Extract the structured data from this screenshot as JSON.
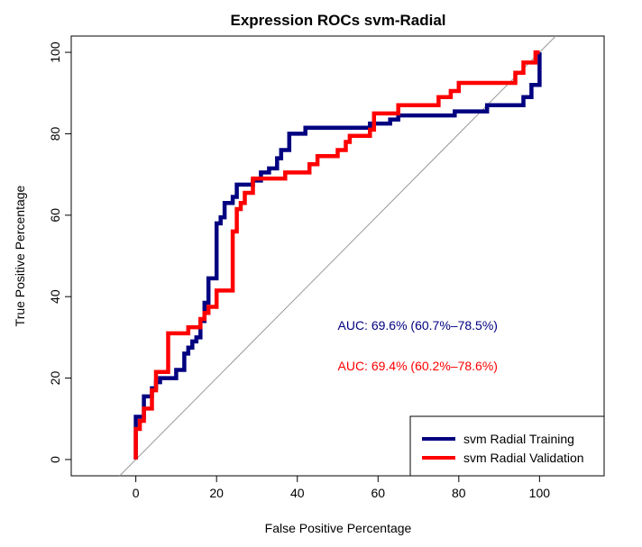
{
  "chart_data": {
    "type": "line",
    "title": "Expression ROCs svm-Radial",
    "xlabel": "False Positive Percentage",
    "ylabel": "True Positive Percentage",
    "xlim": [
      -16,
      116
    ],
    "ylim": [
      -4,
      104
    ],
    "xticks": [
      0,
      20,
      40,
      60,
      80,
      100
    ],
    "yticks": [
      0,
      20,
      40,
      60,
      80,
      100
    ],
    "grid": false,
    "legend_position": "bottom-right",
    "reference_line": {
      "from": [
        -4,
        -4
      ],
      "to": [
        104,
        104
      ],
      "color": "#999999"
    },
    "series": [
      {
        "name": "svm Radial Training",
        "color": "#000080",
        "points": [
          [
            0,
            0
          ],
          [
            0,
            10.5
          ],
          [
            2,
            10.5
          ],
          [
            2,
            15.5
          ],
          [
            4,
            15.5
          ],
          [
            4,
            17.5
          ],
          [
            5,
            17.5
          ],
          [
            5,
            19
          ],
          [
            6,
            19
          ],
          [
            6,
            20
          ],
          [
            10,
            20
          ],
          [
            10,
            22
          ],
          [
            12,
            22
          ],
          [
            12,
            26
          ],
          [
            13,
            26
          ],
          [
            13,
            27.5
          ],
          [
            14,
            27.5
          ],
          [
            14,
            29
          ],
          [
            15,
            29
          ],
          [
            15,
            30
          ],
          [
            16,
            30
          ],
          [
            16,
            34
          ],
          [
            17,
            34
          ],
          [
            17,
            38.5
          ],
          [
            18,
            38.5
          ],
          [
            18,
            44.5
          ],
          [
            20,
            44.5
          ],
          [
            20,
            58
          ],
          [
            21,
            58
          ],
          [
            21,
            59.5
          ],
          [
            22,
            59.5
          ],
          [
            22,
            63
          ],
          [
            24,
            63
          ],
          [
            24,
            64.5
          ],
          [
            25,
            64.5
          ],
          [
            25,
            67.5
          ],
          [
            29,
            67.5
          ],
          [
            29,
            68.5
          ],
          [
            31,
            68.5
          ],
          [
            31,
            70.5
          ],
          [
            33,
            70.5
          ],
          [
            33,
            71.5
          ],
          [
            35,
            71.5
          ],
          [
            35,
            74
          ],
          [
            36,
            74
          ],
          [
            36,
            76
          ],
          [
            38,
            76
          ],
          [
            38,
            80
          ],
          [
            42,
            80
          ],
          [
            42,
            81.5
          ],
          [
            58,
            81.5
          ],
          [
            58,
            82.5
          ],
          [
            63,
            82.5
          ],
          [
            63,
            83.5
          ],
          [
            65,
            83.5
          ],
          [
            65,
            84.5
          ],
          [
            79,
            84.5
          ],
          [
            79,
            85.5
          ],
          [
            87,
            85.5
          ],
          [
            87,
            87
          ],
          [
            96,
            87
          ],
          [
            96,
            89
          ],
          [
            98,
            89
          ],
          [
            98,
            92
          ],
          [
            100,
            92
          ],
          [
            100,
            100
          ]
        ]
      },
      {
        "name": "svm Radial Validation",
        "color": "#ff0000",
        "points": [
          [
            0,
            0
          ],
          [
            0,
            7.5
          ],
          [
            1,
            7.5
          ],
          [
            1,
            9.5
          ],
          [
            2,
            9.5
          ],
          [
            2,
            12.5
          ],
          [
            4,
            12.5
          ],
          [
            4,
            17
          ],
          [
            5,
            17
          ],
          [
            5,
            21.5
          ],
          [
            8,
            21.5
          ],
          [
            8,
            31
          ],
          [
            13,
            31
          ],
          [
            13,
            32.5
          ],
          [
            16,
            32.5
          ],
          [
            16,
            34.5
          ],
          [
            17,
            34.5
          ],
          [
            17,
            36
          ],
          [
            18,
            36
          ],
          [
            18,
            37.5
          ],
          [
            20,
            37.5
          ],
          [
            20,
            41.5
          ],
          [
            24,
            41.5
          ],
          [
            24,
            56
          ],
          [
            25,
            56
          ],
          [
            25,
            61.5
          ],
          [
            26,
            61.5
          ],
          [
            26,
            63
          ],
          [
            27,
            63
          ],
          [
            27,
            65.5
          ],
          [
            29,
            65.5
          ],
          [
            29,
            69
          ],
          [
            37,
            69
          ],
          [
            37,
            70.5
          ],
          [
            43,
            70.5
          ],
          [
            43,
            72.5
          ],
          [
            45,
            72.5
          ],
          [
            45,
            74.5
          ],
          [
            50,
            74.5
          ],
          [
            50,
            76
          ],
          [
            52,
            76
          ],
          [
            52,
            78
          ],
          [
            53,
            78
          ],
          [
            53,
            79.5
          ],
          [
            58,
            79.5
          ],
          [
            58,
            81
          ],
          [
            59,
            81
          ],
          [
            59,
            85
          ],
          [
            65,
            85
          ],
          [
            65,
            87
          ],
          [
            75,
            87
          ],
          [
            75,
            89
          ],
          [
            78,
            89
          ],
          [
            78,
            90.5
          ],
          [
            80,
            90.5
          ],
          [
            80,
            92.5
          ],
          [
            94,
            92.5
          ],
          [
            94,
            95
          ],
          [
            96,
            95
          ],
          [
            96,
            97.5
          ],
          [
            99,
            97.5
          ],
          [
            99,
            100
          ],
          [
            100,
            100
          ]
        ]
      }
    ],
    "annotations": [
      {
        "text": "AUC: 69.6% (60.7%–78.5%)",
        "color": "#000080",
        "x": 50,
        "y": 33
      },
      {
        "text": "AUC: 69.4% (60.2%–78.6%)",
        "color": "#ff0000",
        "x": 50,
        "y": 23
      }
    ]
  }
}
